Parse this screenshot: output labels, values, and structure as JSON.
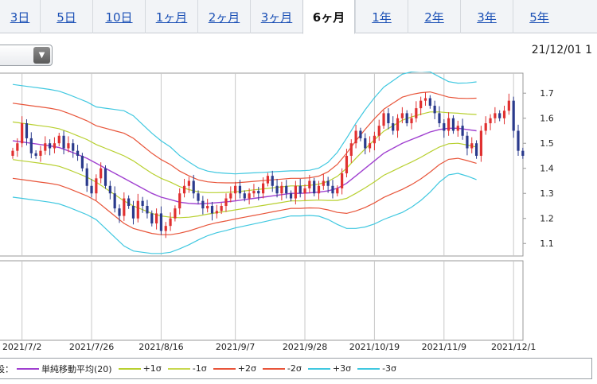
{
  "tabs": [
    {
      "label": "3日",
      "active": false
    },
    {
      "label": "5日",
      "active": false
    },
    {
      "label": "10日",
      "active": false
    },
    {
      "label": "1ヶ月",
      "active": false
    },
    {
      "label": "2ヶ月",
      "active": false
    },
    {
      "label": "3ヶ月",
      "active": false
    },
    {
      "label": "6ヶ月",
      "active": true
    },
    {
      "label": "1年",
      "active": false
    },
    {
      "label": "2年",
      "active": false
    },
    {
      "label": "3年",
      "active": false
    },
    {
      "label": "5年",
      "active": false
    }
  ],
  "dropdown": {
    "value": "",
    "icon": "chevron-down-icon"
  },
  "date_label": "21/12/01 1",
  "legend": {
    "prefix": "設：",
    "items": [
      {
        "label": "単純移動平均(20)",
        "color": "#a040d0"
      },
      {
        "label": "+1σ",
        "color": "#b8d030"
      },
      {
        "label": "-1σ",
        "color": "#c8d850"
      },
      {
        "label": "+2σ",
        "color": "#e8553a"
      },
      {
        "label": "-2σ",
        "color": "#e8553a"
      },
      {
        "label": "+3σ",
        "color": "#40c8e0"
      },
      {
        "label": "-3σ",
        "color": "#40c8e0"
      }
    ]
  },
  "chart_data": {
    "type": "candlestick",
    "x_ticks": [
      "2021/7/2",
      "2021/7/26",
      "2021/8/16",
      "2021/9/7",
      "2021/9/28",
      "2021/10/19",
      "2021/11/9",
      "2021/12/1"
    ],
    "x_tick_index": [
      2,
      17,
      32,
      48,
      63,
      78,
      93,
      108
    ],
    "n_days": 110,
    "y_ticks": [
      1.1,
      1.2,
      1.3,
      1.4,
      1.5,
      1.6,
      1.7
    ],
    "ylim": [
      1.05,
      1.78
    ],
    "close": [
      1.47,
      1.5,
      1.58,
      1.52,
      1.46,
      1.45,
      1.47,
      1.5,
      1.48,
      1.5,
      1.53,
      1.48,
      1.5,
      1.47,
      1.45,
      1.4,
      1.33,
      1.3,
      1.36,
      1.4,
      1.33,
      1.3,
      1.24,
      1.21,
      1.28,
      1.25,
      1.2,
      1.27,
      1.25,
      1.22,
      1.18,
      1.22,
      1.15,
      1.17,
      1.2,
      1.24,
      1.3,
      1.33,
      1.35,
      1.3,
      1.27,
      1.24,
      1.25,
      1.22,
      1.23,
      1.25,
      1.28,
      1.3,
      1.33,
      1.3,
      1.28,
      1.3,
      1.31,
      1.3,
      1.34,
      1.37,
      1.33,
      1.3,
      1.33,
      1.3,
      1.28,
      1.33,
      1.3,
      1.32,
      1.35,
      1.3,
      1.33,
      1.35,
      1.33,
      1.3,
      1.32,
      1.38,
      1.45,
      1.5,
      1.55,
      1.52,
      1.48,
      1.5,
      1.53,
      1.57,
      1.62,
      1.58,
      1.55,
      1.6,
      1.62,
      1.58,
      1.6,
      1.64,
      1.67,
      1.68,
      1.65,
      1.62,
      1.58,
      1.55,
      1.6,
      1.55,
      1.57,
      1.53,
      1.48,
      1.5,
      1.45,
      1.55,
      1.58,
      1.6,
      1.62,
      1.6,
      1.63,
      1.67,
      1.55,
      1.47,
      1.45
    ],
    "sma20": [
      1.51,
      1.505,
      1.5,
      1.495,
      1.49,
      1.483,
      1.47,
      1.455,
      1.44,
      1.42,
      1.4,
      1.38,
      1.36,
      1.34,
      1.32,
      1.3,
      1.285,
      1.275,
      1.265,
      1.26,
      1.258,
      1.26,
      1.263,
      1.266,
      1.27,
      1.275,
      1.28,
      1.285,
      1.29,
      1.295,
      1.3,
      1.3,
      1.302,
      1.305,
      1.31,
      1.32,
      1.34,
      1.37,
      1.4,
      1.43,
      1.46,
      1.48,
      1.5,
      1.515,
      1.53,
      1.545,
      1.555,
      1.56,
      1.56,
      1.555,
      1.55
    ],
    "sma_step": 2,
    "band_sigma": [
      0.075,
      0.075,
      0.075,
      0.075,
      0.075,
      0.075,
      0.075,
      0.075,
      0.075,
      0.075,
      0.08,
      0.085,
      0.09,
      0.09,
      0.085,
      0.08,
      0.075,
      0.07,
      0.062,
      0.055,
      0.048,
      0.043,
      0.04,
      0.038,
      0.036,
      0.035,
      0.034,
      0.033,
      0.032,
      0.031,
      0.03,
      0.03,
      0.03,
      0.032,
      0.038,
      0.048,
      0.06,
      0.07,
      0.078,
      0.084,
      0.088,
      0.09,
      0.092,
      0.09,
      0.086,
      0.08,
      0.07,
      0.062,
      0.06,
      0.062,
      0.065
    ],
    "band_colors": {
      "sigma1": "#b8d030",
      "sigma2": "#e8553a",
      "sigma3": "#40c8e0",
      "sma": "#a040d0"
    },
    "candle_colors": {
      "up": "#e03030",
      "down": "#2a3a8c"
    }
  }
}
